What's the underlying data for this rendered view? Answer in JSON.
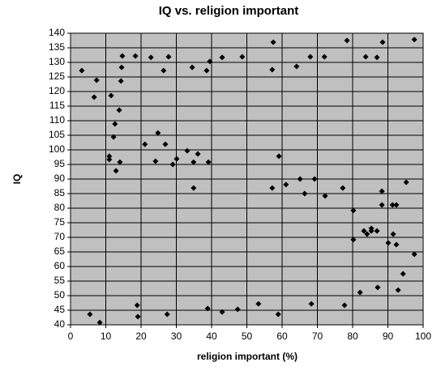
{
  "chart_data": {
    "type": "scatter",
    "title": "IQ vs. religion important",
    "x_label": "religion important (%)",
    "y_label": "IQ",
    "xlim": [
      0,
      100
    ],
    "xticks": [
      0,
      10,
      20,
      30,
      40,
      50,
      60,
      70,
      80,
      90,
      100
    ],
    "ylim": [
      40,
      140
    ],
    "yticks": [
      40,
      45,
      50,
      55,
      60,
      65,
      70,
      75,
      80,
      85,
      90,
      95,
      100,
      105,
      110,
      115,
      120,
      125,
      130,
      135,
      140
    ],
    "grid": true,
    "series": [
      {
        "color": "#000000",
        "x": [
          3.2,
          7.4,
          6.7,
          11.5,
          14.7,
          14.5,
          14.3,
          13.8,
          12.6,
          12.2,
          11,
          11,
          14,
          12.9,
          18.4,
          22.8,
          26.4,
          27.8,
          24.8,
          21.1,
          24.1,
          26.9,
          29,
          30.1,
          33.1,
          34.5,
          38.6,
          39.5,
          43,
          48.7,
          36.1,
          34.9,
          34.9,
          39.1,
          57.5,
          57.2,
          64.1,
          68,
          72,
          78.4,
          83.7,
          88.5,
          86.9,
          97.5,
          59.1,
          57.2,
          61.1,
          65.1,
          66.4,
          69.2,
          72.2,
          77.2,
          80.2,
          80.2,
          83.2,
          84.1,
          85.3,
          85.3,
          86.9,
          88.3,
          88.3,
          91.3,
          92.4,
          95.2,
          90.1,
          91.5,
          92.4,
          97.5,
          94.3,
          92.9,
          87.1,
          82.1,
          77.7,
          68.3,
          58.9,
          53.3,
          47.4,
          43,
          38.9,
          27.4,
          18.9,
          19.1,
          5.5,
          8.3
        ],
        "values": [
          127.2,
          123.9,
          118.1,
          118.6,
          132.2,
          128.3,
          123.6,
          113.6,
          108.9,
          104.4,
          97.8,
          96.7,
          95.8,
          92.8,
          132.2,
          131.7,
          127.2,
          131.9,
          105.8,
          101.9,
          96.1,
          101.9,
          95,
          96.9,
          99.7,
          128.3,
          127.2,
          130.3,
          131.7,
          131.9,
          98.6,
          95.8,
          86.9,
          95.8,
          136.9,
          127.5,
          128.6,
          131.9,
          131.9,
          137.5,
          131.9,
          136.9,
          131.7,
          137.8,
          97.8,
          86.9,
          88.1,
          90,
          85,
          90,
          84.2,
          86.9,
          79.2,
          69.2,
          72.2,
          71.1,
          72.2,
          73.1,
          72.2,
          85.8,
          81.1,
          81.1,
          81.1,
          88.9,
          68.1,
          71.1,
          67.5,
          64.2,
          57.5,
          51.9,
          52.8,
          51.1,
          46.7,
          47.2,
          43.6,
          47.2,
          45.3,
          44.4,
          45.6,
          43.6,
          46.7,
          42.8,
          43.6,
          40.8
        ]
      }
    ]
  }
}
